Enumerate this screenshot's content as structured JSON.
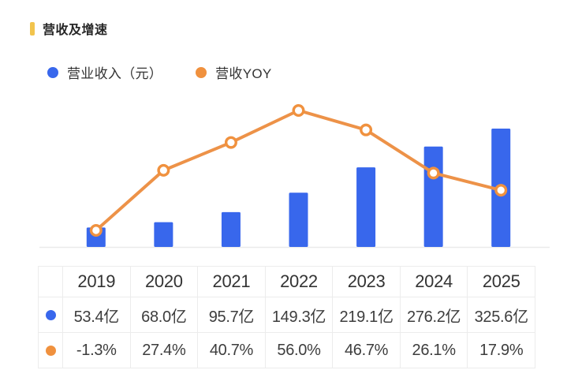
{
  "colors": {
    "blue": "#3867EC",
    "orange": "#F0913E",
    "line_orange": "#ED9248",
    "marker_fill": "#FFFFFF",
    "title_marker_yellow": "#F2C44D",
    "axis_line": "#EBEBEB",
    "table_border": "#ECECEC"
  },
  "chart_data": {
    "type": "bar+line",
    "title": "营收及增速",
    "categories": [
      "2019",
      "2020",
      "2021",
      "2022",
      "2023",
      "2024",
      "2025"
    ],
    "series": [
      {
        "name": "营业收入（元）",
        "type": "bar",
        "unit": "亿",
        "color": "#3867EC",
        "values": [
          53.4,
          68.0,
          95.7,
          149.3,
          219.1,
          276.2,
          325.6
        ]
      },
      {
        "name": "营收YOY",
        "type": "line",
        "unit": "%",
        "color": "#ED9248",
        "marker_color": "#F0913E",
        "values": [
          -1.3,
          27.4,
          40.7,
          56.0,
          46.7,
          26.1,
          17.9
        ]
      }
    ],
    "legend_position": "top",
    "grid": false,
    "bar_axis_min": 0
  },
  "table": {
    "columns": [
      "2019",
      "2020",
      "2021",
      "2022",
      "2023",
      "2024",
      "2025"
    ],
    "rows": [
      {
        "icon": "blue-dot",
        "cells": [
          "53.4亿",
          "68.0亿",
          "95.7亿",
          "149.3亿",
          "219.1亿",
          "276.2亿",
          "325.6亿"
        ]
      },
      {
        "icon": "orange-dot",
        "cells": [
          "-1.3%",
          "27.4%",
          "40.7%",
          "56.0%",
          "46.7%",
          "26.1%",
          "17.9%"
        ]
      }
    ]
  }
}
